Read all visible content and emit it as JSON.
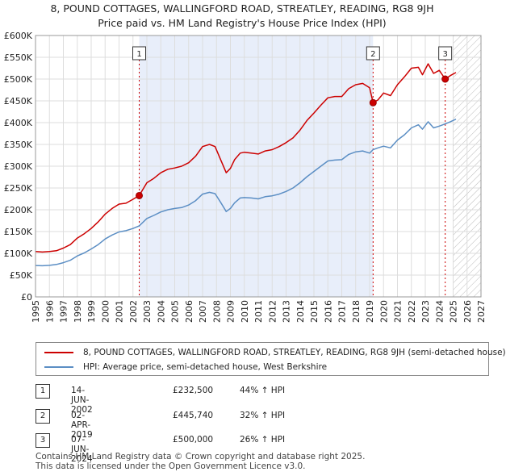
{
  "chart_data": {
    "type": "line",
    "title": "8, POUND COTTAGES, WALLINGFORD ROAD, STREATLEY, READING, RG8 9JH",
    "subtitle": "Price paid vs. HM Land Registry's House Price Index (HPI)",
    "xlabel": "",
    "ylabel": "",
    "xlim": [
      1995,
      2027
    ],
    "ylim": [
      0,
      600000
    ],
    "x_ticks": [
      "1995",
      "1996",
      "1997",
      "1998",
      "1999",
      "2000",
      "2001",
      "2002",
      "2003",
      "2004",
      "2005",
      "2006",
      "2007",
      "2008",
      "2009",
      "2010",
      "2011",
      "2012",
      "2013",
      "2014",
      "2015",
      "2016",
      "2017",
      "2018",
      "2019",
      "2020",
      "2021",
      "2022",
      "2023",
      "2024",
      "2025",
      "2026",
      "2027"
    ],
    "y_ticks": [
      {
        "value": 0,
        "label": "£0"
      },
      {
        "value": 50000,
        "label": "£50K"
      },
      {
        "value": 100000,
        "label": "£100K"
      },
      {
        "value": 150000,
        "label": "£150K"
      },
      {
        "value": 200000,
        "label": "£200K"
      },
      {
        "value": 250000,
        "label": "£250K"
      },
      {
        "value": 300000,
        "label": "£300K"
      },
      {
        "value": 350000,
        "label": "£350K"
      },
      {
        "value": 400000,
        "label": "£400K"
      },
      {
        "value": 450000,
        "label": "£450K"
      },
      {
        "value": 500000,
        "label": "£500K"
      },
      {
        "value": 550000,
        "label": "£550K"
      },
      {
        "value": 600000,
        "label": "£600K"
      }
    ],
    "grid": true,
    "shaded_region": [
      2002.45,
      2019.25
    ],
    "future_hatch_from": 2025.0,
    "series": [
      {
        "name": "8, POUND COTTAGES, WALLINGFORD ROAD, STREATLEY, READING, RG8 9JH (semi-detached house)",
        "color": "#cc0000",
        "x": [
          1995,
          1995.5,
          1996,
          1996.5,
          1997,
          1997.5,
          1998,
          1998.5,
          1999,
          1999.5,
          2000,
          2000.5,
          2001,
          2001.5,
          2002,
          2002.45,
          2003,
          2003.5,
          2004,
          2004.5,
          2005,
          2005.5,
          2006,
          2006.5,
          2007,
          2007.5,
          2007.9,
          2008.3,
          2008.7,
          2009.0,
          2009.3,
          2009.7,
          2010,
          2010.5,
          2011,
          2011.5,
          2012,
          2012.5,
          2013,
          2013.5,
          2014,
          2014.5,
          2015,
          2015.5,
          2016,
          2016.5,
          2017,
          2017.5,
          2018,
          2018.5,
          2019.0,
          2019.25,
          2019.6,
          2020,
          2020.5,
          2021,
          2021.5,
          2022,
          2022.5,
          2022.8,
          2023.2,
          2023.6,
          2024.0,
          2024.43,
          2024.8,
          2025.2
        ],
        "y": [
          104000,
          103000,
          104000,
          106000,
          112000,
          120000,
          135000,
          145000,
          157000,
          172000,
          190000,
          203000,
          213000,
          215000,
          224000,
          232500,
          262000,
          272000,
          285000,
          293000,
          296000,
          300000,
          308000,
          323000,
          345000,
          350000,
          345000,
          315000,
          285000,
          295000,
          315000,
          330000,
          332000,
          330000,
          328000,
          335000,
          338000,
          345000,
          354000,
          365000,
          383000,
          405000,
          422000,
          440000,
          457000,
          460000,
          460000,
          478000,
          487000,
          490000,
          480000,
          445740,
          452000,
          468000,
          462000,
          487000,
          505000,
          525000,
          527000,
          510000,
          535000,
          513000,
          520000,
          500000,
          508000,
          515000
        ]
      },
      {
        "name": "HPI: Average price, semi-detached house, West Berkshire",
        "color": "#5b8ec4",
        "x": [
          1995,
          1995.5,
          1996,
          1996.5,
          1997,
          1997.5,
          1998,
          1998.5,
          1999,
          1999.5,
          2000,
          2000.5,
          2001,
          2001.5,
          2002,
          2002.45,
          2003,
          2003.5,
          2004,
          2004.5,
          2005,
          2005.5,
          2006,
          2006.5,
          2007,
          2007.5,
          2007.9,
          2008.3,
          2008.7,
          2009.0,
          2009.3,
          2009.7,
          2010,
          2010.5,
          2011,
          2011.5,
          2012,
          2012.5,
          2013,
          2013.5,
          2014,
          2014.5,
          2015,
          2015.5,
          2016,
          2016.5,
          2017,
          2017.5,
          2018,
          2018.5,
          2019.0,
          2019.25,
          2019.6,
          2020,
          2020.5,
          2021,
          2021.5,
          2022,
          2022.5,
          2022.8,
          2023.2,
          2023.6,
          2024.0,
          2024.43,
          2024.8,
          2025.2
        ],
        "y": [
          72000,
          71500,
          72500,
          74500,
          78500,
          84000,
          94000,
          101000,
          110000,
          120000,
          133000,
          142000,
          149000,
          152000,
          157000,
          163000,
          180000,
          187000,
          195000,
          200000,
          203000,
          205000,
          211000,
          221000,
          236000,
          240000,
          237000,
          217000,
          196000,
          203000,
          216000,
          227000,
          228000,
          227000,
          225000,
          230000,
          232000,
          236000,
          242000,
          250000,
          262000,
          276000,
          288000,
          300000,
          312000,
          314000,
          315000,
          327000,
          333000,
          335000,
          330000,
          338000,
          342000,
          346000,
          342000,
          360000,
          372000,
          388000,
          395000,
          385000,
          402000,
          388000,
          392000,
          397000,
          402000,
          408000
        ]
      }
    ],
    "sales": [
      {
        "id": "1",
        "x": 2002.45,
        "y": 232500
      },
      {
        "id": "2",
        "x": 2019.25,
        "y": 445740
      },
      {
        "id": "3",
        "x": 2024.43,
        "y": 500000
      }
    ]
  },
  "legend": {
    "property_label": "8, POUND COTTAGES, WALLINGFORD ROAD, STREATLEY, READING, RG8 9JH (semi-detached house)",
    "hpi_label": "HPI: Average price, semi-detached house, West Berkshire",
    "property_color": "#cc0000",
    "hpi_color": "#5b8ec4"
  },
  "transactions": [
    {
      "num": "1",
      "date": "14-JUN-2002",
      "price": "£232,500",
      "hpi": "44% ↑ HPI"
    },
    {
      "num": "2",
      "date": "02-APR-2019",
      "price": "£445,740",
      "hpi": "32% ↑ HPI"
    },
    {
      "num": "3",
      "date": "07-JUN-2024",
      "price": "£500,000",
      "hpi": "26% ↑ HPI"
    }
  ],
  "footer": {
    "line1": "Contains HM Land Registry data © Crown copyright and database right 2025.",
    "line2": "This data is licensed under the Open Government Licence v3.0."
  }
}
